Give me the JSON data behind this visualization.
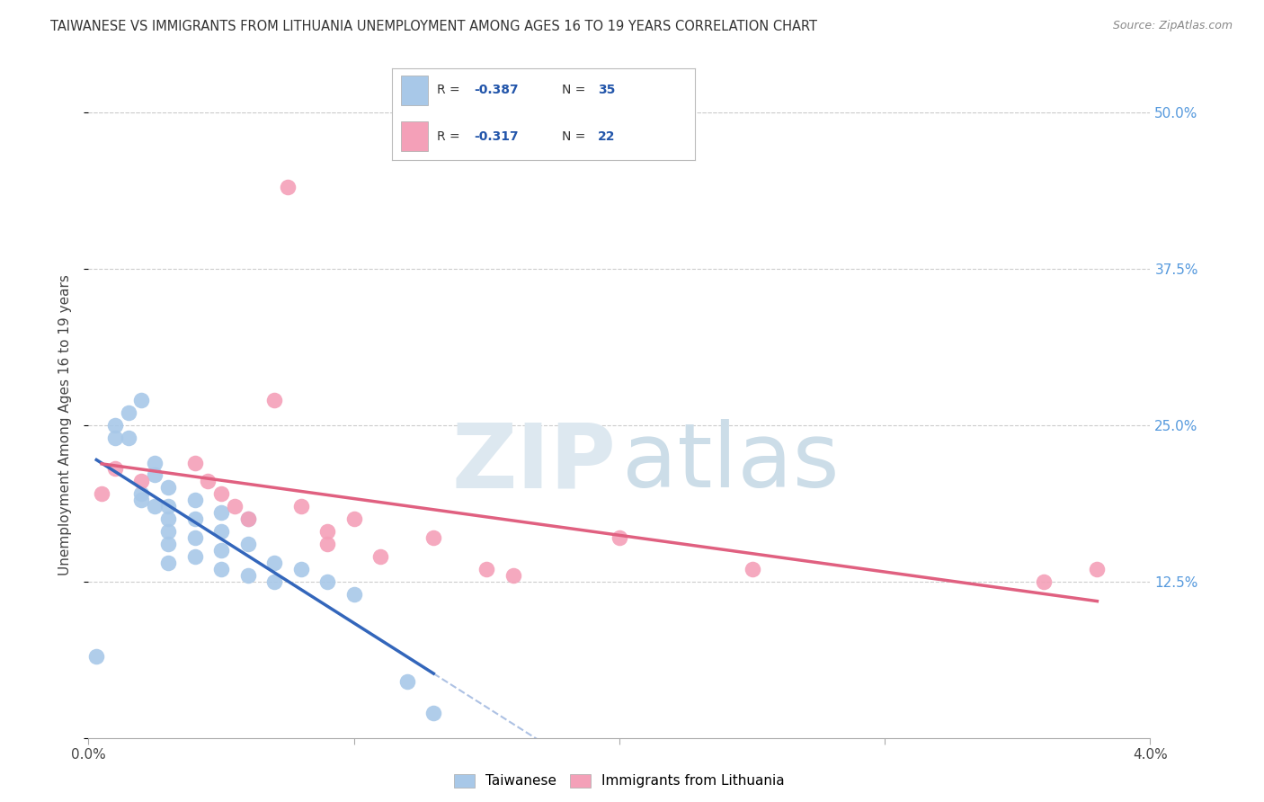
{
  "title": "TAIWANESE VS IMMIGRANTS FROM LITHUANIA UNEMPLOYMENT AMONG AGES 16 TO 19 YEARS CORRELATION CHART",
  "source": "Source: ZipAtlas.com",
  "ylabel": "Unemployment Among Ages 16 to 19 years",
  "xlim": [
    0.0,
    0.04
  ],
  "ylim": [
    0.0,
    0.5
  ],
  "xticks": [
    0.0,
    0.01,
    0.02,
    0.03,
    0.04
  ],
  "xtick_labels": [
    "0.0%",
    "",
    "",
    "",
    "4.0%"
  ],
  "yticks": [
    0.0,
    0.125,
    0.25,
    0.375,
    0.5
  ],
  "blue_R": "-0.387",
  "blue_N": "35",
  "pink_R": "-0.317",
  "pink_N": "22",
  "blue_color": "#a8c8e8",
  "pink_color": "#f4a0b8",
  "blue_line_color": "#3366bb",
  "pink_line_color": "#e06080",
  "blue_scatter_x": [
    0.0003,
    0.001,
    0.001,
    0.0015,
    0.0015,
    0.002,
    0.002,
    0.002,
    0.0025,
    0.0025,
    0.0025,
    0.003,
    0.003,
    0.003,
    0.003,
    0.003,
    0.003,
    0.004,
    0.004,
    0.004,
    0.004,
    0.005,
    0.005,
    0.005,
    0.005,
    0.006,
    0.006,
    0.006,
    0.007,
    0.007,
    0.008,
    0.009,
    0.01,
    0.012,
    0.013
  ],
  "blue_scatter_y": [
    0.065,
    0.25,
    0.24,
    0.26,
    0.24,
    0.27,
    0.195,
    0.19,
    0.22,
    0.21,
    0.185,
    0.2,
    0.185,
    0.175,
    0.165,
    0.155,
    0.14,
    0.19,
    0.175,
    0.16,
    0.145,
    0.18,
    0.165,
    0.15,
    0.135,
    0.175,
    0.155,
    0.13,
    0.14,
    0.125,
    0.135,
    0.125,
    0.115,
    0.045,
    0.02
  ],
  "pink_scatter_x": [
    0.0005,
    0.001,
    0.002,
    0.004,
    0.0045,
    0.005,
    0.0055,
    0.006,
    0.007,
    0.0075,
    0.008,
    0.009,
    0.009,
    0.01,
    0.011,
    0.013,
    0.015,
    0.016,
    0.02,
    0.025,
    0.036,
    0.038
  ],
  "pink_scatter_y": [
    0.195,
    0.215,
    0.205,
    0.22,
    0.205,
    0.195,
    0.185,
    0.175,
    0.27,
    0.44,
    0.185,
    0.165,
    0.155,
    0.175,
    0.145,
    0.16,
    0.135,
    0.13,
    0.16,
    0.135,
    0.125,
    0.135
  ],
  "legend_items": [
    "Taiwanese",
    "Immigrants from Lithuania"
  ],
  "background_color": "#ffffff",
  "grid_color": "#cccccc"
}
